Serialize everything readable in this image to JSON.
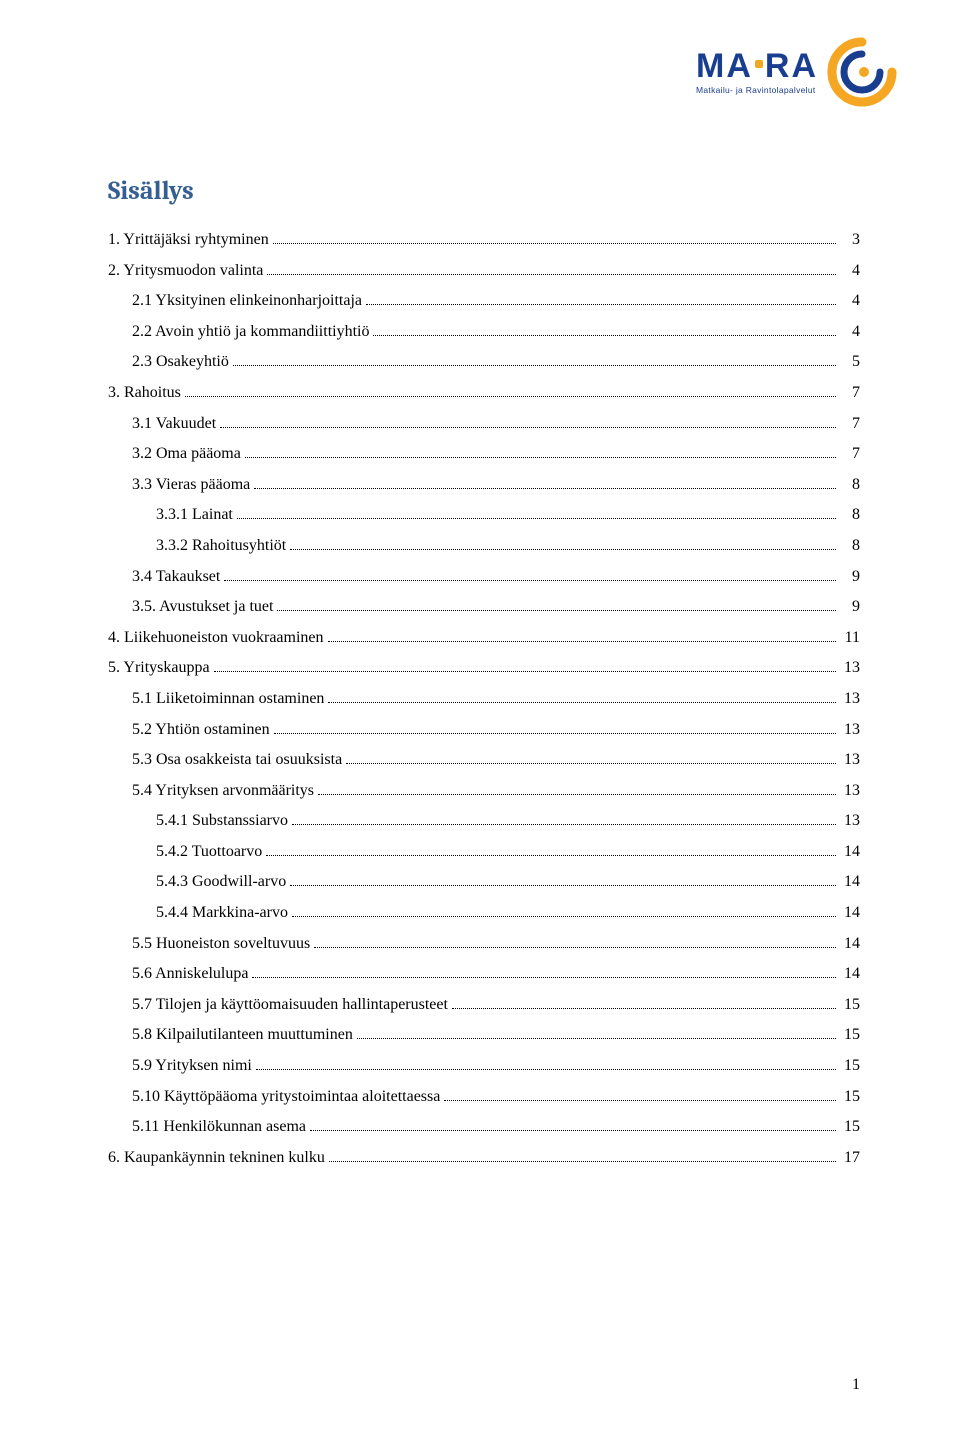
{
  "logo": {
    "main_left": "MA",
    "main_right": "RA",
    "sub": "Matkailu- ja Ravintolapalvelut",
    "colors": {
      "text": "#1a3e8f",
      "accent": "#f5a623",
      "arc_outer": "#f5a623",
      "arc_inner": "#1a3e8f"
    }
  },
  "title": "Sisällys",
  "page_number": "1",
  "toc": [
    {
      "level": 1,
      "label": "1. Yrittäjäksi ryhtyminen",
      "page": "3"
    },
    {
      "level": 1,
      "label": "2. Yritysmuodon valinta",
      "page": "4"
    },
    {
      "level": 2,
      "label": "2.1 Yksityinen elinkeinonharjoittaja",
      "page": "4"
    },
    {
      "level": 2,
      "label": "2.2 Avoin yhtiö ja kommandiittiyhtiö",
      "page": "4"
    },
    {
      "level": 2,
      "label": "2.3 Osakeyhtiö",
      "page": "5"
    },
    {
      "level": 1,
      "label": "3. Rahoitus",
      "page": "7"
    },
    {
      "level": 2,
      "label": "3.1 Vakuudet",
      "page": "7"
    },
    {
      "level": 2,
      "label": "3.2 Oma pääoma",
      "page": "7"
    },
    {
      "level": 2,
      "label": "3.3 Vieras pääoma",
      "page": "8"
    },
    {
      "level": 3,
      "label": "3.3.1 Lainat",
      "page": "8"
    },
    {
      "level": 3,
      "label": "3.3.2 Rahoitusyhtiöt",
      "page": "8"
    },
    {
      "level": 2,
      "label": "3.4 Takaukset",
      "page": "9"
    },
    {
      "level": 2,
      "label": "3.5. Avustukset ja tuet",
      "page": "9"
    },
    {
      "level": 1,
      "label": "4. Liikehuoneiston vuokraaminen",
      "page": "11"
    },
    {
      "level": 1,
      "label": "5. Yrityskauppa",
      "page": "13"
    },
    {
      "level": 2,
      "label": "5.1 Liiketoiminnan ostaminen",
      "page": "13"
    },
    {
      "level": 2,
      "label": "5.2 Yhtiön ostaminen",
      "page": "13"
    },
    {
      "level": 2,
      "label": "5.3 Osa osakkeista tai osuuksista",
      "page": "13"
    },
    {
      "level": 2,
      "label": "5.4 Yrityksen arvonmääritys",
      "page": "13"
    },
    {
      "level": 3,
      "label": "5.4.1 Substanssiarvo",
      "page": "13"
    },
    {
      "level": 3,
      "label": "5.4.2 Tuottoarvo",
      "page": "14"
    },
    {
      "level": 3,
      "label": "5.4.3 Goodwill-arvo",
      "page": "14"
    },
    {
      "level": 3,
      "label": "5.4.4 Markkina-arvo",
      "page": "14"
    },
    {
      "level": 2,
      "label": "5.5 Huoneiston soveltuvuus",
      "page": "14"
    },
    {
      "level": 2,
      "label": "5.6 Anniskelulupa",
      "page": "14"
    },
    {
      "level": 2,
      "label": "5.7 Tilojen ja käyttöomaisuuden hallintaperusteet",
      "page": "15"
    },
    {
      "level": 2,
      "label": "5.8 Kilpailutilanteen muuttuminen",
      "page": "15"
    },
    {
      "level": 2,
      "label": "5.9 Yrityksen nimi",
      "page": "15"
    },
    {
      "level": 2,
      "label": "5.10 Käyttöpääoma yritystoimintaa aloitettaessa",
      "page": "15"
    },
    {
      "level": 2,
      "label": "5.11 Henkilökunnan asema",
      "page": "15"
    },
    {
      "level": 1,
      "label": "6. Kaupankäynnin tekninen kulku",
      "page": "17"
    }
  ]
}
